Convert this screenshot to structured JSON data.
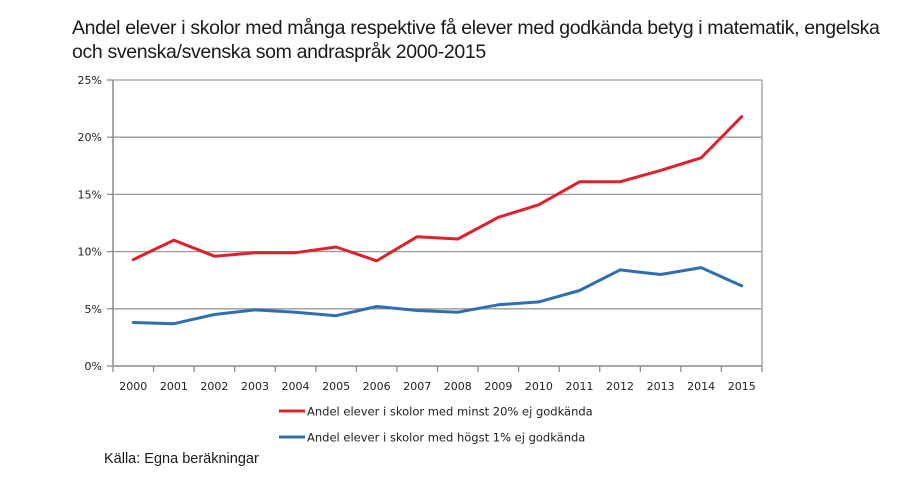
{
  "chart_data": {
    "type": "line",
    "title": "Andel elever i skolor med många respektive få elever med godkända betyg i matematik, engelska och svenska/svenska som andraspråk 2000-2015",
    "xlabel": "",
    "ylabel": "",
    "categories": [
      "2000",
      "2001",
      "2002",
      "2003",
      "2004",
      "2005",
      "2006",
      "2007",
      "2008",
      "2009",
      "2010",
      "2011",
      "2012",
      "2013",
      "2014",
      "2015"
    ],
    "ylim": [
      0,
      25
    ],
    "yticks": [
      0,
      5,
      10,
      15,
      20,
      25
    ],
    "ytick_labels": [
      "0%",
      "5%",
      "10%",
      "15%",
      "20%",
      "25%"
    ],
    "grid": true,
    "legend_position": "bottom",
    "series": [
      {
        "name": "Andel elever i skolor med minst 20% ej godkända",
        "color": "#e0202f",
        "values": [
          9.3,
          11.0,
          9.6,
          9.9,
          9.9,
          10.4,
          9.2,
          11.3,
          11.1,
          13.0,
          14.1,
          16.1,
          16.1,
          17.1,
          18.2,
          21.8
        ]
      },
      {
        "name": "Andel elever i skolor med högst 1% ej godkända",
        "color": "#2f6eb0",
        "values": [
          3.8,
          3.7,
          4.5,
          4.9,
          4.7,
          4.4,
          5.2,
          4.85,
          4.7,
          5.35,
          5.6,
          6.6,
          8.4,
          8.0,
          8.6,
          7.0
        ]
      }
    ],
    "source": "Källa: Egna beräkningar"
  }
}
